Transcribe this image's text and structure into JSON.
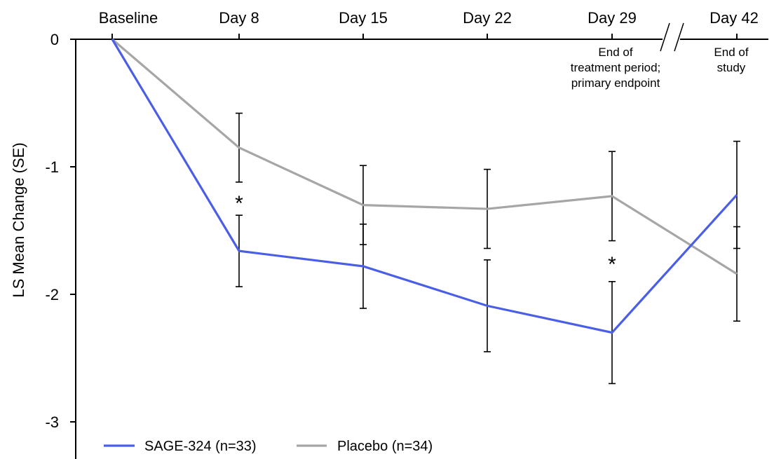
{
  "chart_data": {
    "type": "line",
    "categories": [
      "Baseline",
      "Day 8",
      "Day 15",
      "Day 22",
      "Day 29",
      "Day 42"
    ],
    "ylabel": "LS Mean Change (SE)",
    "ylim": [
      -3.3,
      0
    ],
    "yticks": [
      "0",
      "-1",
      "-2",
      "-3"
    ],
    "ytick_values": [
      0,
      -1,
      -2,
      -3
    ],
    "series": [
      {
        "name": "SAGE-324 (n=33)",
        "color": "#4a5fe6",
        "values": [
          0,
          -1.66,
          -1.78,
          -2.09,
          -2.3,
          -1.22
        ],
        "se": [
          0,
          0.28,
          0.33,
          0.36,
          0.4,
          0.42
        ]
      },
      {
        "name": "Placebo (n=34)",
        "color": "#a6a6a6",
        "values": [
          0,
          -0.85,
          -1.3,
          -1.33,
          -1.23,
          -1.84
        ],
        "se": [
          0,
          0.27,
          0.31,
          0.31,
          0.35,
          0.37
        ]
      }
    ],
    "annotations": [
      {
        "category": "Day 8",
        "text": "*"
      },
      {
        "category": "Day 29",
        "text": "*"
      }
    ],
    "axis_break_between": [
      "Day 29",
      "Day 42"
    ],
    "notes": [
      {
        "category": "Day 29",
        "lines": [
          "End of",
          "treatment period;",
          "primary endpoint"
        ]
      },
      {
        "category": "Day 42",
        "lines": [
          "End of",
          "study"
        ]
      }
    ],
    "legend_position": "bottom-left"
  }
}
